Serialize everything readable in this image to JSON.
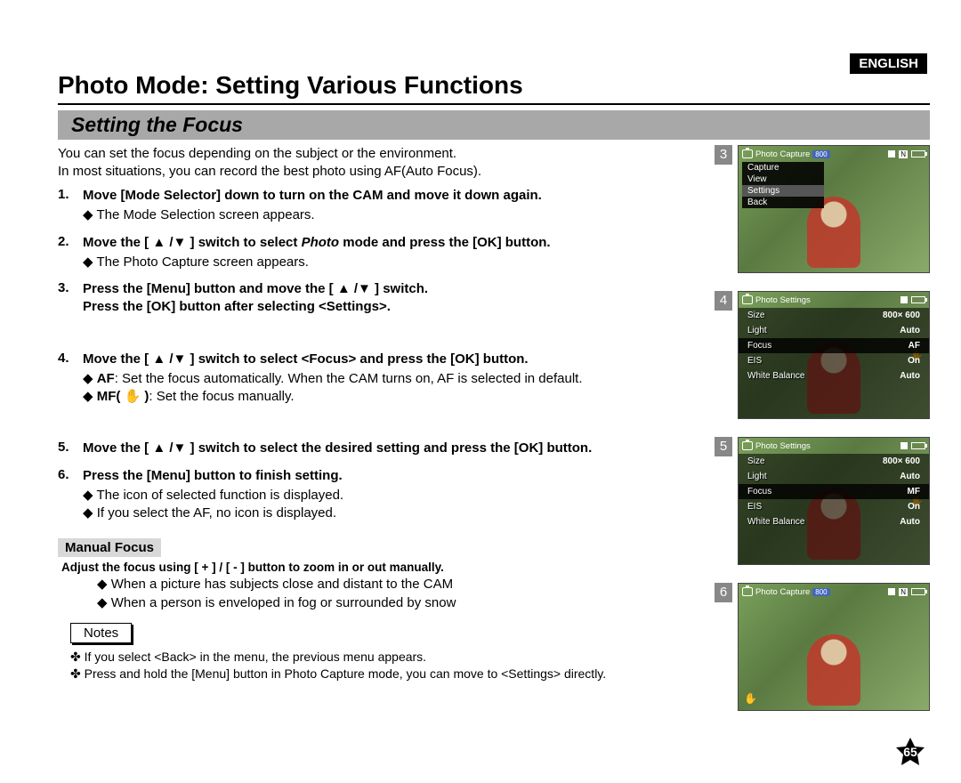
{
  "language_badge": "ENGLISH",
  "page_title": "Photo Mode: Setting Various Functions",
  "section_title": "Setting the Focus",
  "intro_line1": "You can set the focus depending on the subject or the environment.",
  "intro_line2": "In most situations, you can record the best photo using AF(Auto Focus).",
  "steps": [
    {
      "main": "Move [Mode Selector] down to turn on the CAM and move it down again.",
      "subs": [
        "The Mode Selection screen appears."
      ]
    },
    {
      "main_pre": "Move the [ ▲ /▼ ] switch to select ",
      "main_italic": "Photo",
      "main_post": " mode and press the [OK] button.",
      "subs": [
        "The Photo Capture screen appears."
      ]
    },
    {
      "main": "Press the [Menu] button and move the [ ▲ /▼ ] switch.\nPress the [OK] button after selecting <Settings>.",
      "subs": []
    },
    {
      "main": "Move the [ ▲ /▼ ] switch to select <Focus> and press the [OK] button.",
      "subs_rich": [
        {
          "b": "AF",
          "rest": ": Set the focus automatically. When the CAM turns on, AF is selected in default."
        },
        {
          "b": "MF( ✋ )",
          "rest": ": Set the focus manually."
        }
      ]
    },
    {
      "main": "Move the [ ▲ /▼ ] switch to select the desired setting and press the [OK] button.",
      "subs": []
    },
    {
      "main": "Press the [Menu] button to finish setting.",
      "subs": [
        "The icon of selected function is displayed.",
        "If you select the AF, no icon is displayed."
      ]
    }
  ],
  "manual_focus": {
    "title": "Manual Focus",
    "line": "Adjust the focus using [ + ] / [ - ] button to zoom in or out manually.",
    "subs": [
      "When a picture has subjects close and distant to the CAM",
      "When a person is enveloped in fog or surrounded by snow"
    ]
  },
  "notes_label": "Notes",
  "notes": [
    "If you select <Back> in the menu, the previous menu appears.",
    "Press and hold the [Menu] button in Photo Capture mode, you can move to <Settings> directly."
  ],
  "page_number": "65",
  "thumbs": [
    {
      "num": "3",
      "header": "Photo Capture",
      "pill": "800",
      "type": "menu",
      "menu": [
        "Capture",
        "View",
        "Settings",
        "Back"
      ],
      "selected_idx": 2
    },
    {
      "num": "4",
      "header": "Photo Settings",
      "type": "settings",
      "rows": [
        {
          "k": "Size",
          "v": "800× 600"
        },
        {
          "k": "Light",
          "v": "Auto"
        },
        {
          "k": "Focus",
          "v": "AF",
          "sel": true
        },
        {
          "k": "EIS",
          "v": "On"
        },
        {
          "k": "White Balance",
          "v": "Auto"
        }
      ],
      "hand_row": 2
    },
    {
      "num": "5",
      "header": "Photo Settings",
      "type": "settings",
      "rows": [
        {
          "k": "Size",
          "v": "800× 600"
        },
        {
          "k": "Light",
          "v": "Auto"
        },
        {
          "k": "Focus",
          "v": "MF",
          "sel": true
        },
        {
          "k": "EIS",
          "v": "On"
        },
        {
          "k": "White Balance",
          "v": "Auto"
        }
      ],
      "hand_row": 2
    },
    {
      "num": "6",
      "header": "Photo Capture",
      "pill": "800",
      "type": "capture"
    }
  ],
  "colors": {
    "section_bg": "#a8a8a8",
    "lang_bg": "#000000",
    "thumb_bg": "#6a8a50"
  }
}
